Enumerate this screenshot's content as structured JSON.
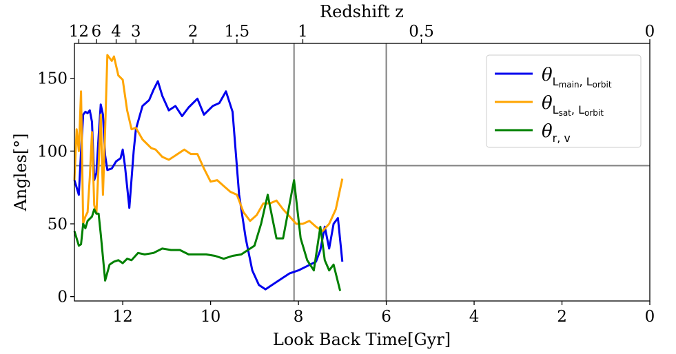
{
  "chart_data": {
    "type": "line",
    "xlabel": "Look Back Time[Gyr]",
    "ylabel": "Angles[°]",
    "top_axis_label": "Redshift z",
    "xlim": [
      13.1,
      0
    ],
    "ylim": [
      -3,
      174
    ],
    "x_ticks": [
      12,
      10,
      8,
      6,
      4,
      2,
      0
    ],
    "y_ticks": [
      0,
      50,
      100,
      150
    ],
    "top_ticks": [
      {
        "label": "12",
        "t": 13.0
      },
      {
        "label": "6",
        "t": 12.6
      },
      {
        "label": "4",
        "t": 12.15
      },
      {
        "label": "3",
        "t": 11.7
      },
      {
        "label": "2",
        "t": 10.4
      },
      {
        "label": "1.5",
        "t": 9.4
      },
      {
        "label": "1",
        "t": 7.9
      },
      {
        "label": "0.5",
        "t": 5.2
      },
      {
        "label": "0",
        "t": 0
      }
    ],
    "reference_lines": {
      "horizontal_y": 90,
      "vertical_x": [
        8.1,
        6.0
      ]
    },
    "series": [
      {
        "name": "main_orbit",
        "color": "#0000ee",
        "points": [
          [
            13.1,
            80
          ],
          [
            13.0,
            70
          ],
          [
            12.95,
            100
          ],
          [
            12.9,
            125
          ],
          [
            12.85,
            127
          ],
          [
            12.8,
            126
          ],
          [
            12.75,
            128
          ],
          [
            12.7,
            120
          ],
          [
            12.65,
            80
          ],
          [
            12.6,
            85
          ],
          [
            12.55,
            110
          ],
          [
            12.5,
            132
          ],
          [
            12.45,
            125
          ],
          [
            12.4,
            97
          ],
          [
            12.35,
            87
          ],
          [
            12.25,
            88
          ],
          [
            12.15,
            93
          ],
          [
            12.05,
            95
          ],
          [
            12.0,
            101
          ],
          [
            11.95,
            90
          ],
          [
            11.85,
            61
          ],
          [
            11.75,
            100
          ],
          [
            11.7,
            115
          ],
          [
            11.55,
            131
          ],
          [
            11.4,
            135
          ],
          [
            11.3,
            142
          ],
          [
            11.2,
            148
          ],
          [
            11.1,
            138
          ],
          [
            10.95,
            128
          ],
          [
            10.8,
            131
          ],
          [
            10.65,
            124
          ],
          [
            10.5,
            130
          ],
          [
            10.3,
            136
          ],
          [
            10.15,
            125
          ],
          [
            9.95,
            131
          ],
          [
            9.8,
            133
          ],
          [
            9.65,
            141
          ],
          [
            9.5,
            127
          ],
          [
            9.35,
            70
          ],
          [
            9.2,
            40
          ],
          [
            9.05,
            18
          ],
          [
            8.9,
            8
          ],
          [
            8.75,
            5
          ],
          [
            8.6,
            8
          ],
          [
            8.4,
            12
          ],
          [
            8.2,
            16
          ],
          [
            8.0,
            18
          ],
          [
            7.8,
            21
          ],
          [
            7.6,
            24
          ],
          [
            7.5,
            32
          ],
          [
            7.4,
            48
          ],
          [
            7.3,
            33
          ],
          [
            7.2,
            50
          ],
          [
            7.1,
            54
          ],
          [
            7.0,
            24
          ]
        ]
      },
      {
        "name": "sat_orbit",
        "color": "#ffa500",
        "points": [
          [
            13.1,
            80
          ],
          [
            13.05,
            115
          ],
          [
            13.0,
            100
          ],
          [
            12.95,
            141
          ],
          [
            12.9,
            50
          ],
          [
            12.85,
            55
          ],
          [
            12.8,
            58
          ],
          [
            12.75,
            82
          ],
          [
            12.7,
            113
          ],
          [
            12.65,
            63
          ],
          [
            12.6,
            57
          ],
          [
            12.55,
            90
          ],
          [
            12.5,
            125
          ],
          [
            12.45,
            70
          ],
          [
            12.4,
            115
          ],
          [
            12.35,
            166
          ],
          [
            12.25,
            162
          ],
          [
            12.2,
            165
          ],
          [
            12.1,
            152
          ],
          [
            12.0,
            149
          ],
          [
            11.9,
            128
          ],
          [
            11.8,
            115
          ],
          [
            11.7,
            116
          ],
          [
            11.55,
            108
          ],
          [
            11.35,
            102
          ],
          [
            11.25,
            101
          ],
          [
            11.1,
            96
          ],
          [
            10.95,
            94
          ],
          [
            10.8,
            97
          ],
          [
            10.6,
            101
          ],
          [
            10.45,
            98
          ],
          [
            10.3,
            98
          ],
          [
            10.15,
            88
          ],
          [
            10.0,
            79
          ],
          [
            9.85,
            80
          ],
          [
            9.7,
            76
          ],
          [
            9.55,
            72
          ],
          [
            9.4,
            70
          ],
          [
            9.25,
            58
          ],
          [
            9.1,
            52
          ],
          [
            8.95,
            56
          ],
          [
            8.8,
            64
          ],
          [
            8.65,
            64
          ],
          [
            8.5,
            66
          ],
          [
            8.35,
            60
          ],
          [
            8.2,
            55
          ],
          [
            8.05,
            50
          ],
          [
            7.9,
            50
          ],
          [
            7.75,
            52
          ],
          [
            7.6,
            48
          ],
          [
            7.45,
            45
          ],
          [
            7.3,
            50
          ],
          [
            7.15,
            60
          ],
          [
            7.0,
            81
          ]
        ]
      },
      {
        "name": "r_v",
        "color": "#008000",
        "points": [
          [
            13.1,
            45
          ],
          [
            13.0,
            35
          ],
          [
            12.95,
            36
          ],
          [
            12.9,
            50
          ],
          [
            12.85,
            47
          ],
          [
            12.8,
            52
          ],
          [
            12.7,
            55
          ],
          [
            12.65,
            60
          ],
          [
            12.6,
            57
          ],
          [
            12.55,
            57
          ],
          [
            12.5,
            43
          ],
          [
            12.4,
            11
          ],
          [
            12.3,
            22
          ],
          [
            12.2,
            24
          ],
          [
            12.1,
            25
          ],
          [
            12.0,
            23
          ],
          [
            11.9,
            26
          ],
          [
            11.8,
            25
          ],
          [
            11.65,
            30
          ],
          [
            11.5,
            29
          ],
          [
            11.3,
            30
          ],
          [
            11.1,
            33
          ],
          [
            10.9,
            32
          ],
          [
            10.7,
            32
          ],
          [
            10.5,
            29
          ],
          [
            10.3,
            29
          ],
          [
            10.1,
            29
          ],
          [
            9.9,
            28
          ],
          [
            9.7,
            26
          ],
          [
            9.5,
            28
          ],
          [
            9.3,
            29
          ],
          [
            9.15,
            32
          ],
          [
            9.0,
            35
          ],
          [
            8.85,
            50
          ],
          [
            8.7,
            70
          ],
          [
            8.6,
            55
          ],
          [
            8.5,
            40
          ],
          [
            8.35,
            40
          ],
          [
            8.1,
            80
          ],
          [
            7.95,
            40
          ],
          [
            7.8,
            25
          ],
          [
            7.65,
            18
          ],
          [
            7.5,
            48
          ],
          [
            7.4,
            25
          ],
          [
            7.3,
            18
          ],
          [
            7.2,
            22
          ],
          [
            7.05,
            4
          ]
        ]
      }
    ],
    "legend": {
      "placement": "top-right",
      "entries": [
        {
          "theta": "θ",
          "sub": "L",
          "subsub": "main",
          "sep": ", ",
          "sub2": "L",
          "subsub2": "orbit"
        },
        {
          "theta": "θ",
          "sub": "L",
          "subsub": "sat",
          "sep": ", ",
          "sub2": "L",
          "subsub2": "orbit"
        },
        {
          "theta": "θ",
          "sub": "r, v",
          "subsub": "",
          "sep": "",
          "sub2": "",
          "subsub2": ""
        }
      ]
    }
  }
}
